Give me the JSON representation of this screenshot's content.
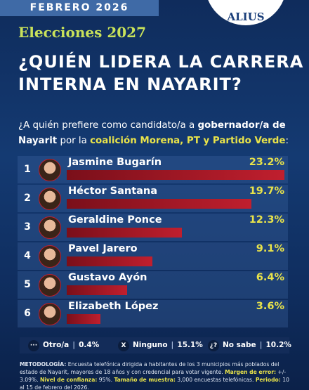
{
  "header": {
    "date": "FEBRERO 2026",
    "logo": "ALIUS"
  },
  "chart_data": {
    "type": "bar",
    "subtitle": "Elecciones 2027",
    "title": [
      "¿QUIÉN LIDERA LA CARRERA",
      "INTERNA EN NAYARIT?"
    ],
    "question": [
      {
        "text": "¿A quién prefiere como candidato/a a ",
        "emphasis": false
      },
      {
        "text": "gobernador/a de Nayarit",
        "emphasis": true
      },
      {
        "text": " por la ",
        "emphasis": false
      },
      {
        "text": "coalición Morena, PT  y Partido Verde",
        "emphasis": "accent"
      },
      {
        "text": ":",
        "emphasis": false
      }
    ],
    "ranks": [
      1,
      2,
      3,
      4,
      5,
      6
    ],
    "categories": [
      "Jasmine Bugarín",
      "Héctor Santana",
      "Geraldine Ponce",
      "Pavel Jarero",
      "Gustavo Ayón",
      "Elizabeth López"
    ],
    "values": [
      23.2,
      19.7,
      12.3,
      9.1,
      6.4,
      3.6
    ],
    "value_labels": [
      "23.2%",
      "19.7%",
      "12.3%",
      "9.1%",
      "6.4%",
      "3.6%"
    ],
    "color": "#c01f2e",
    "others": [
      {
        "icon": "···",
        "name": "Otro/a",
        "value": 0.4,
        "label": "0.4%"
      },
      {
        "icon": "X",
        "name": "Ninguno",
        "value": 15.1,
        "label": "15.1%"
      },
      {
        "icon": "¿?",
        "name": "No sabe",
        "value": 10.2,
        "label": "10.2%"
      }
    ]
  },
  "methodology": [
    {
      "text": "METODOLOGÍA:",
      "emphasis": true
    },
    {
      "text": " Encuesta telefónica dirigida a habitantes de los 3 municipios más poblados del estado de Nayarit, mayores de 18 años y con credencial para votar vigente. ",
      "emphasis": false
    },
    {
      "text": "Margen de error:",
      "emphasis": "accent"
    },
    {
      "text": " +/- 3.09%. ",
      "emphasis": false
    },
    {
      "text": "Nivel de confianza:",
      "emphasis": "accent"
    },
    {
      "text": " 95%. ",
      "emphasis": false
    },
    {
      "text": "Tamaño de muestra:",
      "emphasis": "accent"
    },
    {
      "text": " 3,000 encuestas telefónicas. ",
      "emphasis": false
    },
    {
      "text": "Periodo:",
      "emphasis": "accent"
    },
    {
      "text": " 10 al 15 de febrero del 2026.",
      "emphasis": false
    }
  ]
}
